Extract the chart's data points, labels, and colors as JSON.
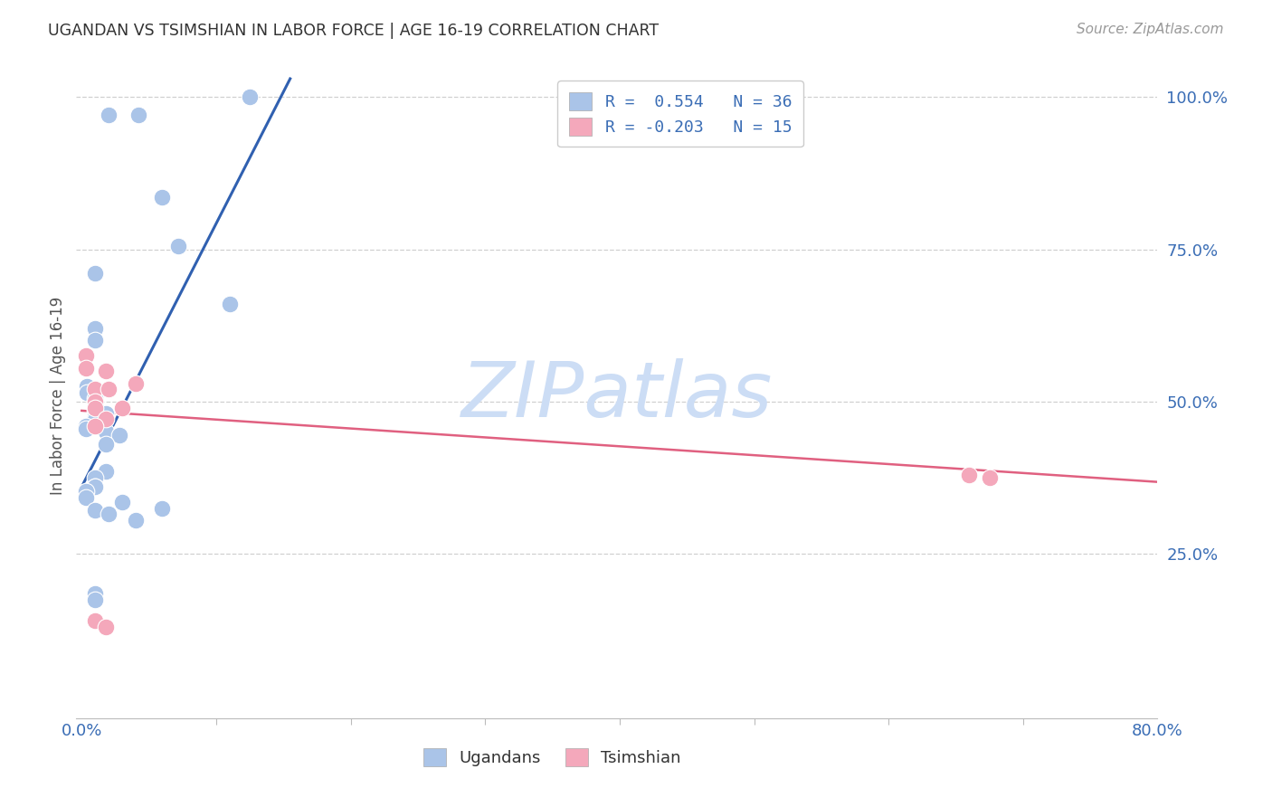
{
  "title": "UGANDAN VS TSIMSHIAN IN LABOR FORCE | AGE 16-19 CORRELATION CHART",
  "source": "Source: ZipAtlas.com",
  "ylabel": "In Labor Force | Age 16-19",
  "xlim": [
    -0.004,
    0.8
  ],
  "ylim": [
    -0.02,
    1.04
  ],
  "ytick_values": [
    0.25,
    0.5,
    0.75,
    1.0
  ],
  "ytick_labels": [
    "25.0%",
    "50.0%",
    "75.0%",
    "100.0%"
  ],
  "xtick_major_values": [
    0.0,
    0.8
  ],
  "xtick_major_labels": [
    "0.0%",
    "80.0%"
  ],
  "xtick_minor_values": [
    0.0,
    0.1,
    0.2,
    0.3,
    0.4,
    0.5,
    0.6,
    0.7,
    0.8
  ],
  "grid_color": "#d0d0d0",
  "background_color": "#ffffff",
  "ugandan_color": "#aac4e8",
  "tsimshian_color": "#f4a8bb",
  "ugandan_line_color": "#3060b0",
  "tsimshian_line_color": "#e06080",
  "watermark_text": "ZIPatlas",
  "watermark_color": "#ccddf5",
  "legend_line1": "R =  0.554   N = 36",
  "legend_line2": "R = -0.203   N = 15",
  "ugandan_x": [
    0.02,
    0.042,
    0.06,
    0.01,
    0.01,
    0.01,
    0.004,
    0.004,
    0.01,
    0.01,
    0.01,
    0.01,
    0.018,
    0.01,
    0.01,
    0.003,
    0.003,
    0.018,
    0.028,
    0.018,
    0.018,
    0.01,
    0.01,
    0.01,
    0.072,
    0.11,
    0.003,
    0.003,
    0.03,
    0.06,
    0.01,
    0.02,
    0.04,
    0.01,
    0.01,
    0.125
  ],
  "ugandan_y": [
    0.97,
    0.97,
    0.835,
    0.71,
    0.62,
    0.6,
    0.525,
    0.515,
    0.505,
    0.5,
    0.495,
    0.485,
    0.48,
    0.475,
    0.47,
    0.46,
    0.455,
    0.45,
    0.445,
    0.43,
    0.385,
    0.375,
    0.36,
    0.36,
    0.755,
    0.66,
    0.352,
    0.342,
    0.335,
    0.325,
    0.322,
    0.315,
    0.305,
    0.185,
    0.175,
    1.0
  ],
  "tsimshian_x": [
    0.003,
    0.003,
    0.018,
    0.04,
    0.01,
    0.02,
    0.01,
    0.01,
    0.018,
    0.01,
    0.66,
    0.675,
    0.01,
    0.018,
    0.03
  ],
  "tsimshian_y": [
    0.575,
    0.555,
    0.55,
    0.53,
    0.52,
    0.52,
    0.5,
    0.49,
    0.472,
    0.46,
    0.38,
    0.375,
    0.14,
    0.13,
    0.49
  ],
  "ugandan_trendline_x": [
    0.0,
    0.155
  ],
  "ugandan_trendline_y": [
    0.36,
    1.03
  ],
  "tsimshian_trendline_x": [
    0.0,
    0.8
  ],
  "tsimshian_trendline_y": [
    0.485,
    0.368
  ]
}
